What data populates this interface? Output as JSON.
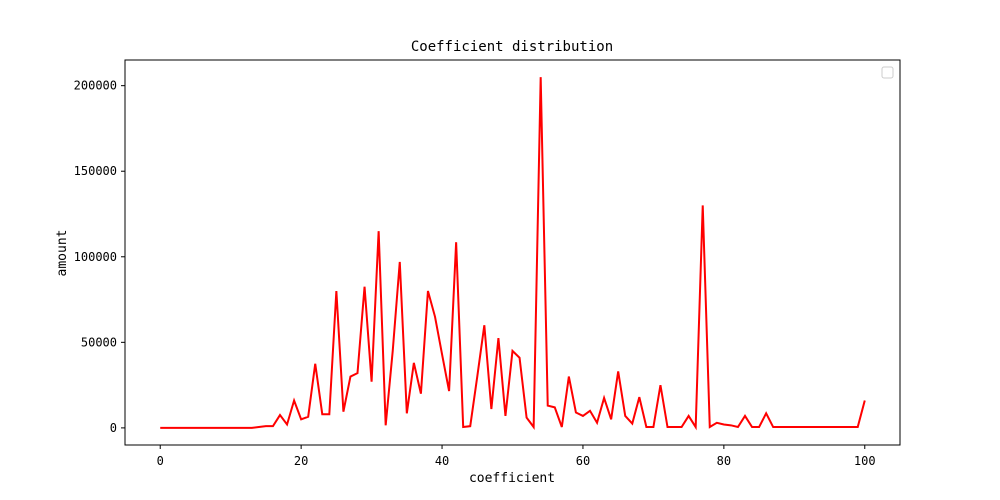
{
  "chart_data": {
    "type": "line",
    "title": "Coefficient distribution",
    "xlabel": "coefficient",
    "ylabel": "amount",
    "xlim": [
      -5,
      105
    ],
    "ylim": [
      -10000,
      215000
    ],
    "xticks": [
      0,
      20,
      40,
      60,
      80,
      100
    ],
    "yticks": [
      0,
      50000,
      100000,
      150000,
      200000
    ],
    "grid": false,
    "legend": {
      "location": "upper right",
      "entries": []
    },
    "series": [
      {
        "color": "#ff0000",
        "x": [
          0,
          1,
          2,
          3,
          4,
          5,
          6,
          7,
          8,
          9,
          10,
          11,
          12,
          13,
          14,
          15,
          16,
          17,
          18,
          19,
          20,
          21,
          22,
          23,
          24,
          25,
          26,
          27,
          28,
          29,
          30,
          31,
          32,
          33,
          34,
          35,
          36,
          37,
          38,
          39,
          40,
          41,
          42,
          43,
          44,
          45,
          46,
          47,
          48,
          49,
          50,
          51,
          52,
          53,
          54,
          55,
          56,
          57,
          58,
          59,
          60,
          61,
          62,
          63,
          64,
          65,
          66,
          67,
          68,
          69,
          70,
          71,
          72,
          73,
          74,
          75,
          76,
          77,
          78,
          79,
          80,
          81,
          82,
          83,
          84,
          85,
          86,
          87,
          88,
          89,
          90,
          91,
          92,
          93,
          94,
          95,
          96,
          97,
          98,
          99,
          100
        ],
        "y": [
          0,
          0,
          0,
          0,
          0,
          0,
          0,
          0,
          0,
          0,
          0,
          0,
          0,
          0,
          500,
          1000,
          1000,
          7500,
          2000,
          16000,
          5000,
          6500,
          37500,
          8000,
          8000,
          80000,
          9500,
          30000,
          32000,
          82500,
          27000,
          115000,
          1500,
          45000,
          97000,
          8500,
          38000,
          20000,
          80000,
          65000,
          43000,
          21500,
          108500,
          500,
          1000,
          30000,
          60000,
          11000,
          52500,
          7000,
          45000,
          41000,
          6000,
          500,
          205000,
          13000,
          12000,
          500,
          30000,
          9000,
          7000,
          10000,
          3000,
          17500,
          5000,
          33000,
          7000,
          2500,
          18000,
          500,
          500,
          25000,
          500,
          500,
          500,
          7000,
          500,
          130000,
          500,
          3000,
          2000,
          1500,
          500,
          7000,
          500,
          500,
          8500,
          500,
          500,
          500,
          500,
          500,
          500,
          500,
          500,
          500,
          500,
          500,
          500,
          500,
          16000
        ]
      }
    ]
  }
}
